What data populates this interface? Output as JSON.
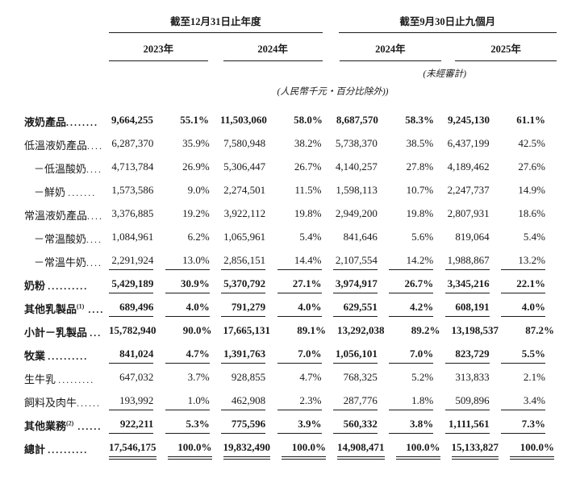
{
  "header": {
    "period_group_1": "截至12月31日止年度",
    "period_group_2": "截至9月30日止九個月",
    "year_columns": [
      "2023年",
      "2024年",
      "2024年",
      "2025年"
    ],
    "unaudited_note": "(未經審計)",
    "unit_note": "(人民幣千元‧百分比除外))"
  },
  "table": {
    "rows": [
      {
        "label": "液奶產品",
        "sup": "",
        "leader": "........",
        "bold": true,
        "indent": false,
        "underline": false,
        "double_underline": false,
        "values": [
          "9,664,255",
          "55.1%",
          "11,503,060",
          "58.0%",
          "8,687,570",
          "58.3%",
          "9,245,130",
          "61.1%"
        ]
      },
      {
        "label": "低溫液奶產品",
        "sup": "",
        "leader": "....",
        "bold": false,
        "indent": false,
        "underline": false,
        "double_underline": false,
        "values": [
          "6,287,370",
          "35.9%",
          "7,580,948",
          "38.2%",
          "5,738,370",
          "38.5%",
          "6,437,199",
          "42.5%"
        ]
      },
      {
        "label": "－低溫酸奶",
        "sup": "",
        "leader": "....",
        "bold": false,
        "indent": true,
        "underline": false,
        "double_underline": false,
        "values": [
          "4,713,784",
          "26.9%",
          "5,306,447",
          "26.7%",
          "4,140,257",
          "27.8%",
          "4,189,462",
          "27.6%"
        ]
      },
      {
        "label": "－鮮奶 ",
        "sup": "",
        "leader": ".......",
        "bold": false,
        "indent": true,
        "underline": false,
        "double_underline": false,
        "values": [
          "1,573,586",
          "9.0%",
          "2,274,501",
          "11.5%",
          "1,598,113",
          "10.7%",
          "2,247,737",
          "14.9%"
        ]
      },
      {
        "label": "常溫液奶產品",
        "sup": "",
        "leader": "....",
        "bold": false,
        "indent": false,
        "underline": false,
        "double_underline": false,
        "values": [
          "3,376,885",
          "19.2%",
          "3,922,112",
          "19.8%",
          "2,949,200",
          "19.8%",
          "2,807,931",
          "18.6%"
        ]
      },
      {
        "label": "－常溫酸奶",
        "sup": "",
        "leader": "....",
        "bold": false,
        "indent": true,
        "underline": false,
        "double_underline": false,
        "values": [
          "1,084,961",
          "6.2%",
          "1,065,961",
          "5.4%",
          "841,646",
          "5.6%",
          "819,064",
          "5.4%"
        ]
      },
      {
        "label": "－常溫牛奶",
        "sup": "",
        "leader": "....",
        "bold": false,
        "indent": true,
        "underline": true,
        "double_underline": false,
        "values": [
          "2,291,924",
          "13.0%",
          "2,856,151",
          "14.4%",
          "2,107,554",
          "14.2%",
          "1,988,867",
          "13.2%"
        ]
      },
      {
        "label": "奶粉 ",
        "sup": "",
        "leader": "..........",
        "bold": true,
        "indent": false,
        "underline": true,
        "double_underline": false,
        "values": [
          "5,429,189",
          "30.9%",
          "5,370,792",
          "27.1%",
          "3,974,917",
          "26.7%",
          "3,345,216",
          "22.1%"
        ]
      },
      {
        "label": "其他乳製品",
        "sup": "(1)",
        "leader": " ....",
        "bold": true,
        "indent": false,
        "underline": true,
        "double_underline": false,
        "values": [
          "689,496",
          "4.0%",
          "791,279",
          "4.0%",
          "629,551",
          "4.2%",
          "608,191",
          "4.0%"
        ]
      },
      {
        "label": "小計－乳製品 ",
        "sup": "",
        "leader": "...",
        "bold": true,
        "indent": false,
        "underline": false,
        "double_underline": false,
        "values": [
          "15,782,940",
          "90.0%",
          "17,665,131",
          "89.1%",
          "13,292,038",
          "89.2%",
          "13,198,537",
          "87.2%"
        ]
      },
      {
        "label": "牧業 ",
        "sup": "",
        "leader": "..........",
        "bold": true,
        "indent": false,
        "underline": true,
        "double_underline": false,
        "values": [
          "841,024",
          "4.7%",
          "1,391,763",
          "7.0%",
          "1,056,101",
          "7.0%",
          "823,729",
          "5.5%"
        ]
      },
      {
        "label": "生牛乳 ",
        "sup": "",
        "leader": ".........",
        "bold": false,
        "indent": false,
        "underline": false,
        "double_underline": false,
        "values": [
          "647,032",
          "3.7%",
          "928,855",
          "4.7%",
          "768,325",
          "5.2%",
          "313,833",
          "2.1%"
        ]
      },
      {
        "label": "飼料及肉牛",
        "sup": "",
        "leader": "......",
        "bold": false,
        "indent": false,
        "underline": true,
        "double_underline": false,
        "values": [
          "193,992",
          "1.0%",
          "462,908",
          "2.3%",
          "287,776",
          "1.8%",
          "509,896",
          "3.4%"
        ]
      },
      {
        "label": "其他業務",
        "sup": "(2)",
        "leader": " ......",
        "bold": true,
        "indent": false,
        "underline": true,
        "double_underline": false,
        "values": [
          "922,211",
          "5.3%",
          "775,596",
          "3.9%",
          "560,332",
          "3.8%",
          "1,111,561",
          "7.3%"
        ]
      },
      {
        "label": "總計 ",
        "sup": "",
        "leader": "..........",
        "bold": true,
        "indent": false,
        "underline": false,
        "double_underline": true,
        "values": [
          "17,546,175",
          "100.0%",
          "19,832,490",
          "100.0%",
          "14,908,471",
          "100.0%",
          "15,133,827",
          "100.0%"
        ]
      }
    ]
  }
}
